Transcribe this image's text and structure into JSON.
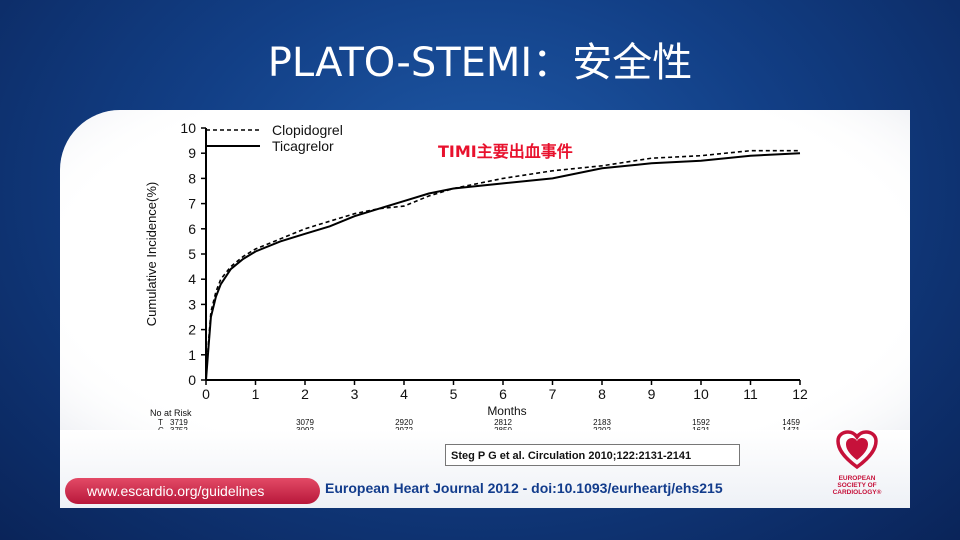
{
  "slide": {
    "title": "PLATO-STEMI：安全性"
  },
  "footer": {
    "citation": "Steg P G et al. Circulation 2010;122:2131-2141",
    "guidelines_link": "www.escardio.org/guidelines",
    "journal": "European Heart Journal 2012 - doi:10.1093/eurheartj/ehs215",
    "logo_lines": [
      "EUROPEAN",
      "SOCIETY OF",
      "CARDIOLOGY®"
    ]
  },
  "colors": {
    "accent": "#c6113a",
    "annotation": "#e8112d",
    "journal": "#123c8c"
  },
  "chart_data": {
    "type": "line",
    "title": "",
    "annotation": "TIMI主要出血事件",
    "xlabel": "Months",
    "ylabel": "Cumulative Incidence(%)",
    "xlim": [
      0,
      12
    ],
    "ylim": [
      0,
      10
    ],
    "xticks": [
      "0",
      "1",
      "2",
      "3",
      "4",
      "5",
      "6",
      "7",
      "8",
      "9",
      "10",
      "11",
      "12"
    ],
    "yticks": [
      "0",
      "1",
      "2",
      "3",
      "4",
      "5",
      "6",
      "7",
      "8",
      "9",
      "10"
    ],
    "legend_position": "top-left",
    "series": [
      {
        "name": "Clopidogrel",
        "style": "dashed",
        "x": [
          0,
          0.05,
          0.1,
          0.2,
          0.3,
          0.5,
          0.75,
          1,
          1.5,
          2,
          2.5,
          3,
          3.5,
          4,
          4.5,
          5,
          6,
          7,
          8,
          9,
          10,
          11,
          12
        ],
        "y": [
          0,
          1.5,
          2.7,
          3.5,
          4.0,
          4.5,
          4.9,
          5.2,
          5.6,
          6.0,
          6.3,
          6.6,
          6.8,
          6.9,
          7.3,
          7.6,
          8.0,
          8.3,
          8.5,
          8.8,
          8.9,
          9.1,
          9.1
        ]
      },
      {
        "name": "Ticagrelor",
        "style": "solid",
        "x": [
          0,
          0.05,
          0.1,
          0.2,
          0.3,
          0.5,
          0.75,
          1,
          1.5,
          2,
          2.5,
          3,
          3.5,
          4,
          4.5,
          5,
          6,
          7,
          8,
          9,
          10,
          11,
          12
        ],
        "y": [
          0,
          1.3,
          2.5,
          3.3,
          3.8,
          4.4,
          4.8,
          5.1,
          5.5,
          5.8,
          6.1,
          6.5,
          6.8,
          7.1,
          7.4,
          7.6,
          7.8,
          8.0,
          8.4,
          8.6,
          8.7,
          8.9,
          9.0
        ]
      }
    ],
    "at_risk": {
      "label": "No at Risk",
      "rows": [
        {
          "label": "T",
          "values": [
            "3719",
            "3079",
            "2920",
            "2812",
            "2183",
            "1592",
            "1459"
          ]
        },
        {
          "label": "C",
          "values": [
            "3752",
            "3092",
            "2972",
            "2850",
            "2202",
            "1621",
            "1471"
          ]
        }
      ],
      "months": [
        0,
        2,
        4,
        6,
        8,
        10,
        12
      ]
    }
  }
}
